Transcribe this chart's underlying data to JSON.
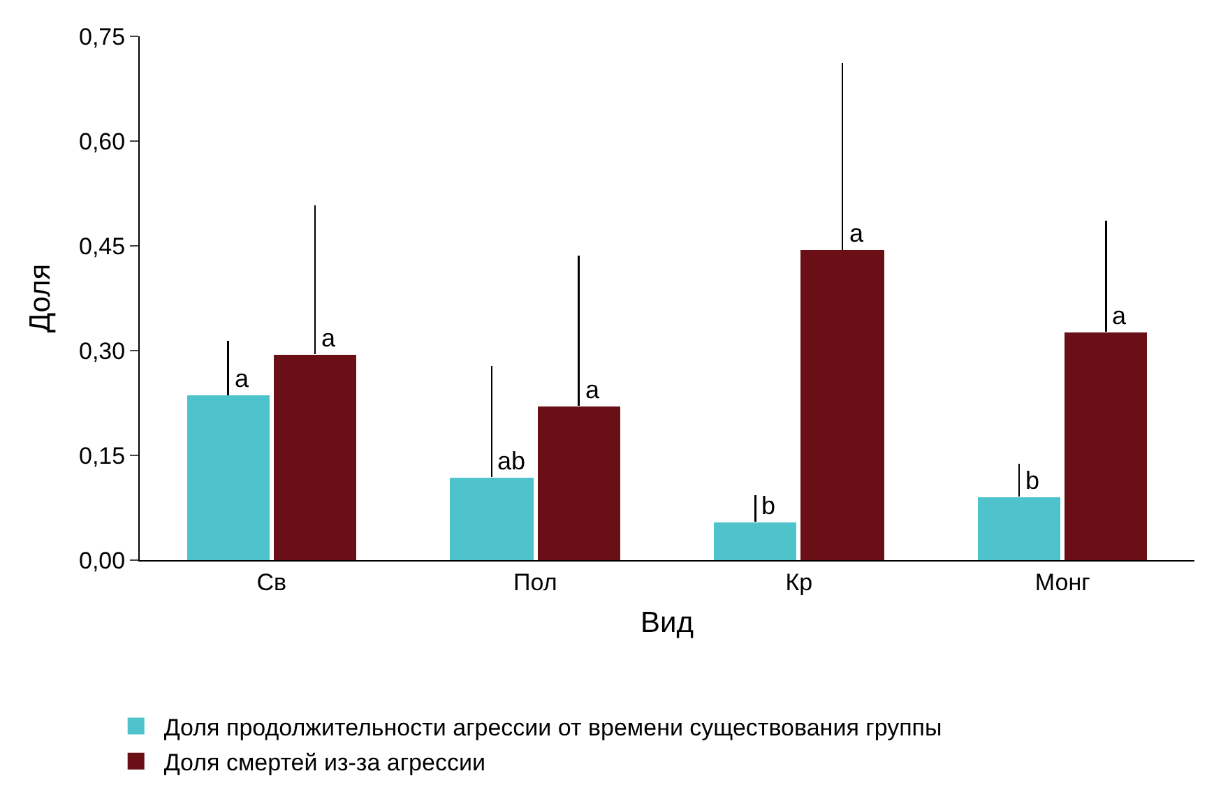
{
  "chart_data": {
    "type": "bar",
    "xlabel": "Вид",
    "ylabel": "Доля",
    "categories": [
      "Св",
      "Пол",
      "Кр",
      "Монг"
    ],
    "series": [
      {
        "name": "Доля продолжительности агрессии от времени существования группы",
        "color": "#4fc3cb",
        "values": [
          0.236,
          0.119,
          0.055,
          0.091
        ],
        "errors": [
          [
            0.236,
            0.314
          ],
          [
            0.119,
            0.278
          ],
          [
            0.055,
            0.093
          ],
          [
            0.091,
            0.138
          ]
        ],
        "value_labels": [
          "a",
          "ab",
          "b",
          "b"
        ]
      },
      {
        "name": "Доля смертей из-за агрессии",
        "color": "#6b0f16",
        "values": [
          0.295,
          0.221,
          0.444,
          0.327
        ],
        "errors": [
          [
            0.295,
            0.508
          ],
          [
            0.221,
            0.436
          ],
          [
            0.444,
            0.712
          ],
          [
            0.327,
            0.486
          ]
        ],
        "value_labels": [
          "a",
          "a",
          "a",
          "a"
        ]
      }
    ],
    "ylim": [
      0,
      0.75
    ],
    "yticks": [
      {
        "value": 0,
        "label": "0,00"
      },
      {
        "value": 0.15,
        "label": "0,15"
      },
      {
        "value": 0.3,
        "label": "0,30"
      },
      {
        "value": 0.45,
        "label": "0,45"
      },
      {
        "value": 0.6,
        "label": "0,60"
      },
      {
        "value": 0.75,
        "label": "0,75"
      }
    ],
    "grid": false,
    "legend": "bottom"
  }
}
